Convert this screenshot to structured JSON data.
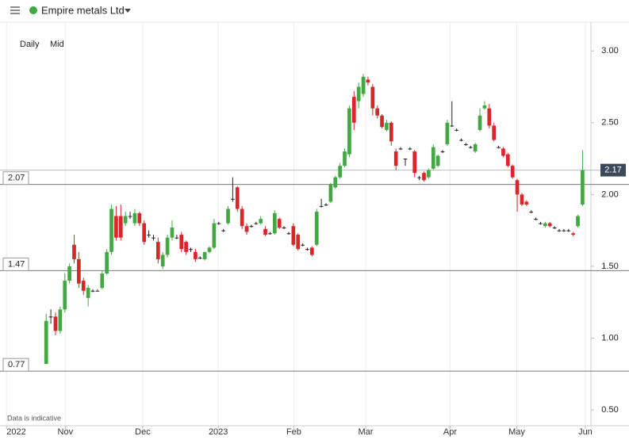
{
  "chart_data": {
    "type": "candlestick",
    "title": "Empire metals Ltd",
    "timeframes": [
      "Daily",
      "Mid"
    ],
    "note": "Data is indicative",
    "up_color": "#43a843",
    "down_color": "#d9262a",
    "grid": true,
    "categories": [
      null,
      null,
      null,
      null,
      null,
      null,
      null,
      null,
      null,
      null,
      null,
      null,
      null,
      null,
      null,
      null,
      null,
      null,
      null,
      null,
      null,
      null,
      null,
      null,
      null,
      null,
      null,
      null,
      null,
      null,
      null,
      null,
      null,
      null,
      null,
      null,
      null,
      null,
      null,
      null,
      null,
      null,
      null,
      null,
      null,
      null,
      null,
      null,
      null,
      null,
      null,
      null,
      null,
      null,
      null,
      null,
      null,
      null,
      null,
      null,
      null,
      null,
      null,
      null,
      null,
      null,
      null,
      null,
      null,
      null,
      null,
      null,
      null,
      null,
      null,
      null,
      null,
      null,
      null,
      null,
      null,
      null,
      null,
      null,
      null,
      null,
      null,
      null,
      null,
      null,
      null,
      null,
      null,
      null,
      null,
      null,
      null,
      null,
      null,
      null,
      null,
      null,
      null,
      null,
      null,
      null,
      null,
      null,
      null,
      null,
      null,
      null,
      null,
      null,
      null,
      null
    ],
    "open": [
      0.82,
      1.15,
      1.15,
      1.05,
      1.2,
      1.4,
      1.65,
      1.55,
      1.4,
      1.28,
      1.33,
      1.33,
      1.35,
      1.45,
      1.6,
      1.85,
      1.85,
      1.8,
      1.85,
      1.8,
      1.87,
      1.8,
      1.72,
      1.7,
      1.67,
      1.5,
      1.58,
      1.7,
      1.7,
      1.72,
      1.67,
      1.62,
      1.6,
      1.56,
      1.55,
      1.6,
      1.63,
      1.8,
      1.75,
      1.8,
      1.97,
      2.05,
      1.9,
      1.78,
      1.78,
      1.8,
      1.8,
      1.76,
      1.73,
      1.73,
      1.83,
      1.77,
      1.73,
      1.78,
      1.72,
      1.65,
      1.62,
      1.63,
      1.65,
      1.92,
      1.93,
      1.95,
      2.05,
      2.12,
      2.2,
      2.28,
      2.68,
      2.65,
      2.7,
      2.8,
      2.75,
      2.6,
      2.55,
      2.45,
      2.5,
      2.3,
      2.32,
      2.25,
      2.32,
      2.3,
      2.12,
      2.15,
      2.12,
      2.18,
      2.2,
      2.3,
      2.35,
      2.48,
      2.45,
      2.38,
      2.35,
      2.33,
      2.3,
      2.45,
      2.6,
      2.6,
      2.48,
      2.33,
      2.32,
      2.28,
      2.2,
      2.1,
      2.0,
      1.95,
      1.88,
      1.83,
      1.8,
      1.78,
      1.8,
      1.77,
      1.75,
      1.75,
      1.75,
      1.73,
      1.78,
      1.93
    ],
    "high": [
      1.17,
      1.2,
      1.18,
      1.22,
      1.45,
      1.52,
      1.72,
      1.6,
      1.42,
      1.37,
      1.34,
      1.34,
      1.47,
      1.62,
      1.93,
      1.92,
      1.93,
      1.88,
      1.88,
      1.9,
      1.88,
      1.82,
      1.75,
      1.72,
      1.7,
      1.6,
      1.72,
      1.82,
      1.72,
      1.74,
      1.68,
      1.63,
      1.62,
      1.57,
      1.6,
      1.64,
      1.83,
      1.81,
      1.76,
      1.92,
      2.12,
      2.06,
      1.92,
      1.8,
      1.79,
      1.81,
      1.85,
      1.78,
      1.74,
      1.89,
      1.84,
      1.78,
      1.74,
      1.8,
      1.73,
      1.66,
      1.63,
      1.64,
      1.9,
      1.97,
      1.94,
      2.08,
      2.13,
      2.22,
      2.32,
      2.62,
      2.72,
      2.78,
      2.84,
      2.82,
      2.77,
      2.62,
      2.56,
      2.52,
      2.51,
      2.32,
      2.33,
      2.25,
      2.33,
      2.31,
      2.13,
      2.16,
      2.18,
      2.35,
      2.28,
      2.31,
      2.52,
      2.65,
      2.46,
      2.39,
      2.36,
      2.34,
      2.36,
      2.6,
      2.65,
      2.63,
      2.5,
      2.34,
      2.33,
      2.29,
      2.21,
      2.11,
      2.01,
      1.96,
      1.89,
      1.84,
      1.81,
      1.81,
      1.81,
      1.78,
      1.76,
      1.76,
      1.76,
      1.74,
      1.86,
      2.31
    ],
    "low": [
      0.82,
      1.1,
      1.02,
      1.03,
      1.18,
      1.38,
      1.52,
      1.35,
      1.3,
      1.22,
      1.32,
      1.33,
      1.34,
      1.44,
      1.58,
      1.68,
      1.68,
      1.78,
      1.83,
      1.78,
      1.78,
      1.65,
      1.7,
      1.68,
      1.52,
      1.48,
      1.56,
      1.68,
      1.69,
      1.6,
      1.58,
      1.6,
      1.53,
      1.55,
      1.54,
      1.59,
      1.62,
      1.79,
      1.74,
      1.79,
      1.95,
      1.88,
      1.76,
      1.72,
      1.77,
      1.79,
      1.79,
      1.71,
      1.72,
      1.72,
      1.76,
      1.76,
      1.72,
      1.64,
      1.61,
      1.64,
      1.61,
      1.57,
      1.64,
      1.91,
      1.92,
      1.94,
      2.04,
      2.11,
      2.19,
      2.26,
      2.45,
      2.6,
      2.68,
      2.76,
      2.55,
      2.53,
      2.46,
      2.44,
      2.34,
      2.17,
      2.31,
      2.2,
      2.31,
      2.12,
      2.1,
      2.09,
      2.11,
      2.17,
      2.19,
      2.29,
      2.34,
      2.47,
      2.44,
      2.37,
      2.34,
      2.32,
      2.29,
      2.44,
      2.59,
      2.46,
      2.37,
      2.32,
      2.26,
      2.19,
      2.11,
      1.88,
      1.92,
      1.92,
      1.87,
      1.82,
      1.79,
      1.77,
      1.77,
      1.76,
      1.74,
      1.74,
      1.74,
      1.71,
      1.77,
      1.92
    ],
    "close": [
      1.12,
      1.15,
      1.05,
      1.2,
      1.4,
      1.5,
      1.55,
      1.38,
      1.33,
      1.35,
      1.33,
      1.33,
      1.45,
      1.6,
      1.9,
      1.7,
      1.7,
      1.85,
      1.85,
      1.87,
      1.8,
      1.67,
      1.72,
      1.7,
      1.55,
      1.58,
      1.7,
      1.77,
      1.7,
      1.62,
      1.6,
      1.62,
      1.55,
      1.56,
      1.6,
      1.63,
      1.8,
      1.8,
      1.75,
      1.9,
      1.97,
      1.9,
      1.78,
      1.74,
      1.78,
      1.8,
      1.83,
      1.72,
      1.73,
      1.87,
      1.77,
      1.77,
      1.73,
      1.65,
      1.62,
      1.65,
      1.62,
      1.58,
      1.88,
      1.92,
      1.93,
      2.07,
      2.12,
      2.2,
      2.3,
      2.6,
      2.5,
      2.75,
      2.82,
      2.78,
      2.6,
      2.55,
      2.47,
      2.5,
      2.37,
      2.2,
      2.32,
      2.25,
      2.32,
      2.15,
      2.12,
      2.1,
      2.17,
      2.33,
      2.27,
      2.3,
      2.5,
      2.48,
      2.45,
      2.38,
      2.35,
      2.33,
      2.35,
      2.55,
      2.62,
      2.48,
      2.38,
      2.33,
      2.27,
      2.2,
      2.12,
      2.0,
      1.93,
      1.93,
      1.88,
      1.83,
      1.8,
      1.8,
      1.78,
      1.77,
      1.75,
      1.75,
      1.75,
      1.72,
      1.85,
      2.17
    ],
    "xlim": [
      -9.9,
      116.8
    ],
    "xticks": [
      {
        "value": -8.5,
        "label": "2022"
      },
      {
        "value": 4.1,
        "label": "Nov"
      },
      {
        "value": 20.7,
        "label": "Dec"
      },
      {
        "value": 36.9,
        "label": "2023"
      },
      {
        "value": 53.1,
        "label": "Feb"
      },
      {
        "value": 68.5,
        "label": "Mar"
      },
      {
        "value": 86.6,
        "label": "Apr"
      },
      {
        "value": 100.9,
        "label": "May"
      },
      {
        "value": 115.6,
        "label": "Jun"
      }
    ],
    "ylim": [
      0.39,
      3.2
    ],
    "yticks": [
      {
        "value": 0.5,
        "label": "0.50"
      },
      {
        "value": 1,
        "label": "1.00"
      },
      {
        "value": 1.5,
        "label": "1.50"
      },
      {
        "value": 2,
        "label": "2.00"
      },
      {
        "value": 2.5,
        "label": "2.50"
      },
      {
        "value": 3,
        "label": "3.00"
      }
    ],
    "price_lines": [
      {
        "value": 2.07,
        "label": "2.07"
      },
      {
        "value": 1.47,
        "label": "1.47"
      },
      {
        "value": 0.77,
        "label": "0.77"
      }
    ],
    "last_price": {
      "value": 2.17,
      "label": "2.17"
    }
  }
}
